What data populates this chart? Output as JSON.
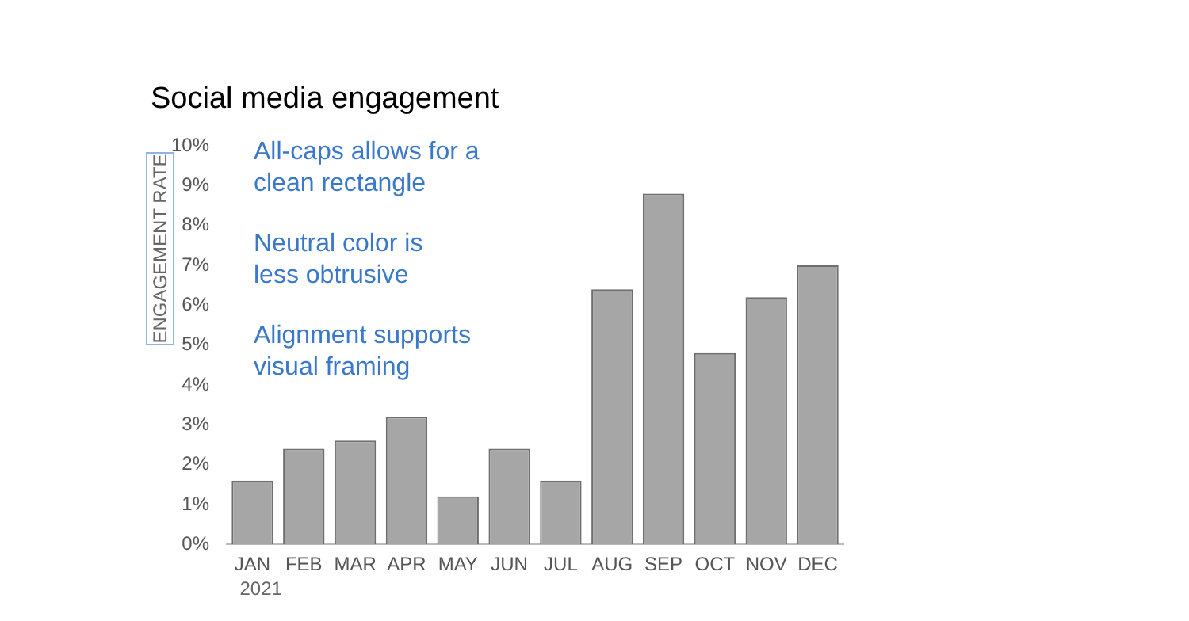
{
  "chart_data": {
    "type": "bar",
    "title": "Social media engagement",
    "ylabel": "ENGAGEMENT RATE",
    "categories": [
      "JAN",
      "FEB",
      "MAR",
      "APR",
      "MAY",
      "JUN",
      "JUL",
      "AUG",
      "SEP",
      "OCT",
      "NOV",
      "DEC"
    ],
    "values": [
      1.6,
      2.4,
      2.6,
      3.2,
      1.2,
      2.4,
      1.6,
      6.4,
      8.8,
      4.8,
      6.2,
      7.0
    ],
    "color": "#a6a6a6",
    "ylim": [
      0,
      10
    ],
    "yticks": [
      {
        "value": 0,
        "label": "0%"
      },
      {
        "value": 1,
        "label": "1%"
      },
      {
        "value": 2,
        "label": "2%"
      },
      {
        "value": 3,
        "label": "3%"
      },
      {
        "value": 4,
        "label": "4%"
      },
      {
        "value": 5,
        "label": "5%"
      },
      {
        "value": 6,
        "label": "6%"
      },
      {
        "value": 7,
        "label": "7%"
      },
      {
        "value": 8,
        "label": "8%"
      },
      {
        "value": 9,
        "label": "9%"
      },
      {
        "value": 10,
        "label": "10%"
      }
    ],
    "grid": false,
    "legend": false,
    "annotations": [
      "All-caps allows for a\nclean rectangle",
      "Neutral color is\nless obtrusive",
      "Alignment supports\nvisual framing",
      "2021"
    ]
  }
}
